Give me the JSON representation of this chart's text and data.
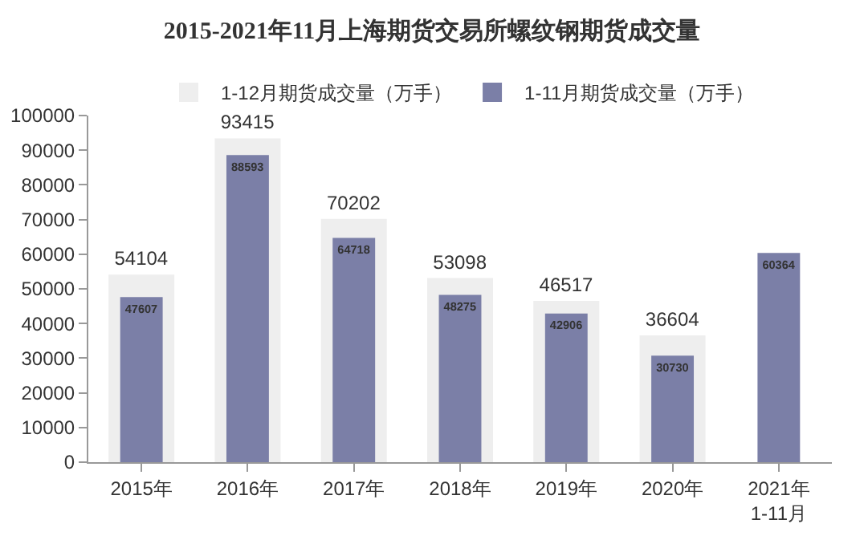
{
  "chart_data": {
    "type": "bar",
    "title": "2015-2021年11月上海期货交易所螺纹钢期货成交量",
    "categories": [
      "2015年",
      "2016年",
      "2017年",
      "2018年",
      "2019年",
      "2020年",
      "2021年\n1-11月"
    ],
    "series": [
      {
        "name": "1-12月期货成交量（万手）",
        "color": "#eeeeee",
        "values": [
          54104,
          93415,
          70202,
          53098,
          46517,
          36604,
          null
        ]
      },
      {
        "name": "1-11月期货成交量（万手）",
        "color": "#7b7fa7",
        "values": [
          47607,
          88593,
          64718,
          48275,
          42906,
          30730,
          60364
        ]
      }
    ],
    "ylim": [
      0,
      100000
    ],
    "yticks": [
      0,
      10000,
      20000,
      30000,
      40000,
      50000,
      60000,
      70000,
      80000,
      90000,
      100000
    ],
    "data_labels": true,
    "grid": false,
    "legend": "top"
  }
}
